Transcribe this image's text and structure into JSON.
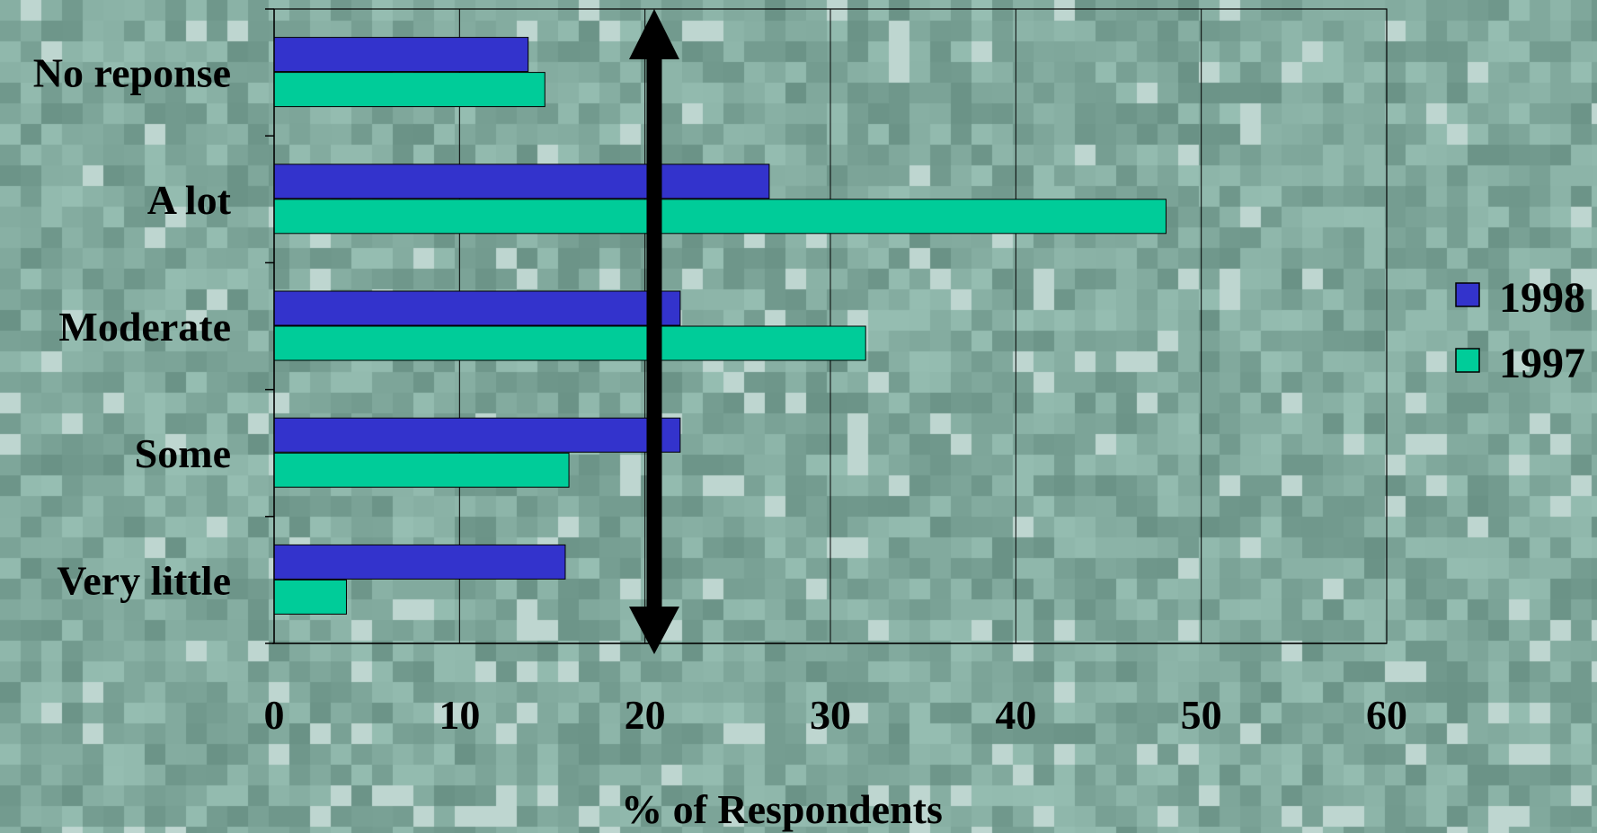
{
  "chart_data": {
    "type": "bar",
    "orientation": "horizontal",
    "categories": [
      "No reponse",
      "A lot",
      "Moderate",
      "Some",
      "Very little"
    ],
    "series": [
      {
        "name": "1998",
        "color": "#3333cc",
        "values": [
          13.7,
          26.7,
          21.9,
          21.9,
          15.7
        ]
      },
      {
        "name": "1997",
        "color": "#00cc99",
        "values": [
          14.6,
          48.1,
          31.9,
          15.9,
          3.9
        ]
      }
    ],
    "xlabel": "% of Respondents",
    "ylabel": "",
    "xlim": [
      0,
      60
    ],
    "xticks": [
      "0",
      "10",
      "20",
      "30",
      "40",
      "50",
      "60"
    ],
    "grid": true,
    "legend": "right",
    "annotation": {
      "type": "double-headed vertical arrow",
      "x": 20.5,
      "color": "#000000"
    }
  }
}
